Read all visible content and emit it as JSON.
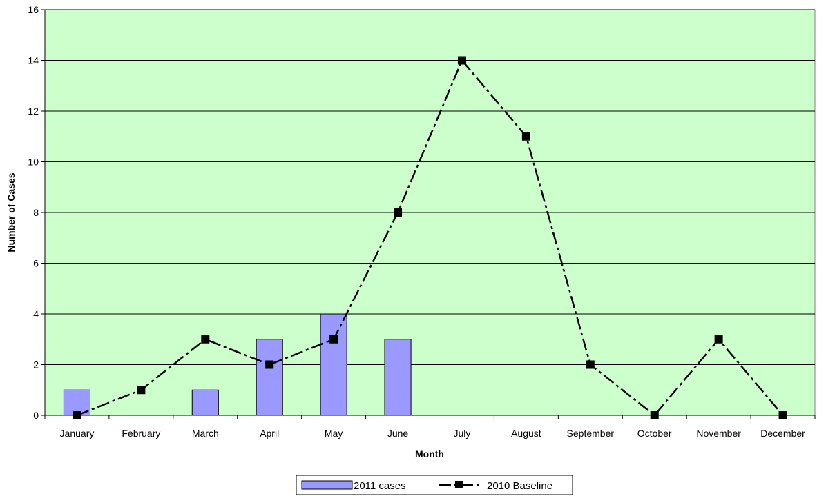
{
  "chart_data": {
    "type": "bar",
    "title": "",
    "xlabel": "Month",
    "ylabel": "Number of Cases",
    "ylim": [
      0,
      16
    ],
    "yticks": [
      0,
      2,
      4,
      6,
      8,
      10,
      12,
      14,
      16
    ],
    "categories": [
      "January",
      "February",
      "March",
      "April",
      "May",
      "June",
      "July",
      "August",
      "September",
      "October",
      "November",
      "December"
    ],
    "series": [
      {
        "name": "2011 cases",
        "type": "bar",
        "color": "#9999ff",
        "values": [
          1,
          null,
          1,
          3,
          4,
          3,
          null,
          null,
          null,
          null,
          null,
          null
        ]
      },
      {
        "name": "2010 Baseline",
        "type": "line",
        "color": "#000000",
        "line_style": "dash-dot",
        "marker": "square",
        "values": [
          0,
          1,
          3,
          2,
          3,
          8,
          14,
          11,
          2,
          0,
          3,
          0
        ]
      }
    ],
    "grid": true,
    "plot_background": "#ccffcc",
    "legend_position": "bottom-center"
  }
}
